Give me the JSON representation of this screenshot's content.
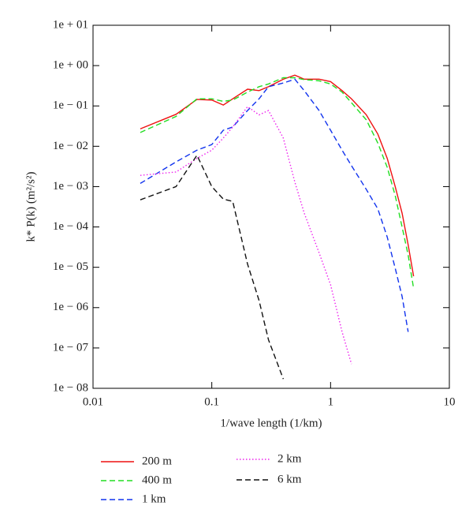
{
  "chart_data": {
    "type": "line",
    "x_label": "1/wave length (1/km)",
    "y_label": "k* P(k) (m²/s²)",
    "log_x": true,
    "log_y": true,
    "xlim": [
      0.01,
      10
    ],
    "xticks": [
      0.01,
      0.1,
      1,
      10
    ],
    "ylim": [
      1e-08,
      10
    ],
    "yticks": [
      {
        "value": 10,
        "label": "1e + 01"
      },
      {
        "value": 1,
        "label": "1e + 00"
      },
      {
        "value": 0.1,
        "label": "1e − 01"
      },
      {
        "value": 0.01,
        "label": "1e − 02"
      },
      {
        "value": 0.001,
        "label": "1e − 03"
      },
      {
        "value": 0.0001,
        "label": "1e − 04"
      },
      {
        "value": 1e-05,
        "label": "1e − 05"
      },
      {
        "value": 1e-06,
        "label": "1e − 06"
      },
      {
        "value": 1e-07,
        "label": "1e − 07"
      },
      {
        "value": 1e-08,
        "label": "1e − 08"
      }
    ],
    "x": [
      0.025,
      0.05,
      0.075,
      0.1,
      0.125,
      0.15,
      0.2,
      0.25,
      0.3,
      0.4,
      0.5,
      0.6,
      0.8,
      1,
      1.25,
      1.5,
      2,
      2.5,
      3,
      3.5,
      4,
      4.5,
      5
    ],
    "series": [
      {
        "name": "200 m",
        "color": "#ee1111",
        "dash": "solid",
        "values": [
          0.027,
          0.062,
          0.145,
          0.14,
          0.105,
          0.15,
          0.26,
          0.24,
          0.3,
          0.46,
          0.58,
          0.46,
          0.46,
          0.4,
          0.24,
          0.15,
          0.06,
          0.02,
          0.005,
          0.001,
          0.00022,
          3.6e-05,
          6e-06
        ]
      },
      {
        "name": "400 m",
        "color": "#22dd22",
        "dash": "dashed",
        "values": [
          0.022,
          0.055,
          0.15,
          0.15,
          0.13,
          0.14,
          0.22,
          0.3,
          0.35,
          0.5,
          0.5,
          0.45,
          0.42,
          0.35,
          0.22,
          0.12,
          0.045,
          0.012,
          0.003,
          0.0006,
          0.0001,
          2e-05,
          3e-06
        ]
      },
      {
        "name": "1 km",
        "color": "#1133ee",
        "dash": "dashed",
        "values": [
          0.0012,
          0.0041,
          0.008,
          0.011,
          0.025,
          0.03,
          0.077,
          0.15,
          0.3,
          0.37,
          0.46,
          0.24,
          0.077,
          0.025,
          0.008,
          0.0033,
          0.00085,
          0.00028,
          5.6e-05,
          9.5e-06,
          1.9e-06,
          2.5e-07,
          null
        ]
      },
      {
        "name": "2 km",
        "color": "#ee22ee",
        "dash": "dotted",
        "values": [
          0.0019,
          0.0023,
          0.005,
          0.008,
          0.016,
          0.03,
          0.096,
          0.06,
          0.077,
          0.016,
          0.0013,
          0.00022,
          2.3e-05,
          3.7e-06,
          2.5e-07,
          4e-08,
          null,
          null,
          null,
          null,
          null,
          null,
          null
        ]
      },
      {
        "name": "6 km",
        "color": "#111111",
        "dash": "dashed",
        "values": [
          0.00047,
          0.001,
          0.006,
          0.001,
          0.00049,
          0.00043,
          1.2e-05,
          1.5e-06,
          1.6e-07,
          1.7e-08,
          null,
          null,
          null,
          null,
          null,
          null,
          null,
          null,
          null,
          null,
          null,
          null,
          null
        ]
      }
    ]
  }
}
